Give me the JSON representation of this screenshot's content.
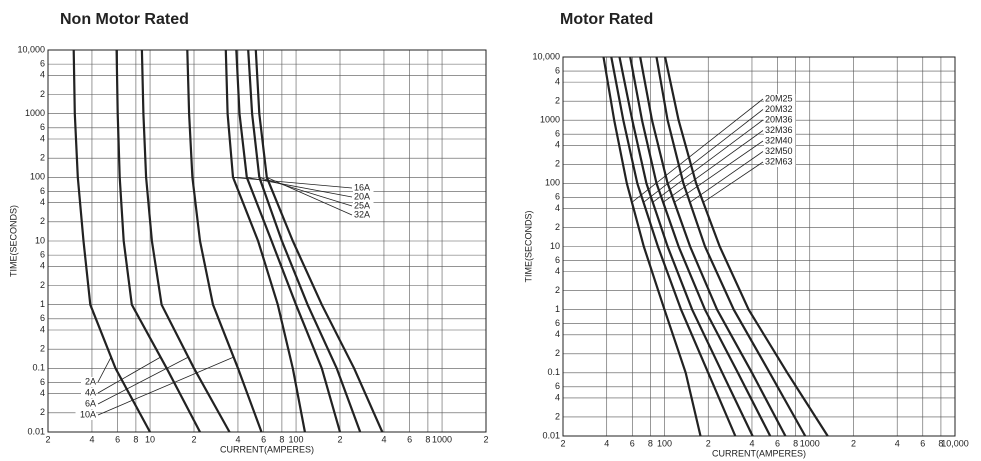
{
  "chart_data": [
    {
      "type": "line",
      "title": "Non Motor Rated",
      "xlabel": "CURRENT(AMPERES)",
      "ylabel": "TIME(SECONDS)",
      "xscale": "log",
      "yscale": "log",
      "grid": true,
      "xlim": [
        2,
        2000
      ],
      "ylim": [
        0.01,
        10000
      ],
      "xticks": [
        2,
        4,
        6,
        8,
        10,
        {
          "value": 20,
          "label": "2"
        },
        {
          "value": 40,
          "label": "4"
        },
        {
          "value": 60,
          "label": "6"
        },
        {
          "value": 80,
          "label": "8"
        },
        100,
        {
          "value": 200,
          "label": "2"
        },
        {
          "value": 400,
          "label": "4"
        },
        {
          "value": 600,
          "label": "6"
        },
        {
          "value": 800,
          "label": "8"
        },
        1000,
        {
          "value": 2000,
          "label": "2"
        }
      ],
      "yticks": [
        0.01,
        {
          "value": 0.02,
          "label": "2"
        },
        {
          "value": 0.04,
          "label": "4"
        },
        {
          "value": 0.06,
          "label": "6"
        },
        0.1,
        {
          "value": 0.2,
          "label": "2"
        },
        {
          "value": 0.4,
          "label": "4"
        },
        {
          "value": 0.6,
          "label": "6"
        },
        1,
        {
          "value": 2,
          "label": "2"
        },
        {
          "value": 4,
          "label": "4"
        },
        {
          "value": 6,
          "label": "6"
        },
        10,
        {
          "value": 20,
          "label": "2"
        },
        {
          "value": 40,
          "label": "4"
        },
        {
          "value": 60,
          "label": "6"
        },
        100,
        {
          "value": 200,
          "label": "2"
        },
        {
          "value": 400,
          "label": "4"
        },
        {
          "value": 600,
          "label": "6"
        },
        1000,
        {
          "value": 2000,
          "label": "2"
        },
        {
          "value": 4000,
          "label": "4"
        },
        {
          "value": 6000,
          "label": "6"
        },
        {
          "value": 10000,
          "label": "10,000"
        }
      ],
      "series": [
        {
          "name": "2A",
          "color": "#222222",
          "x": [
            3,
            3.05,
            3.2,
            3.5,
            3.9,
            5.8,
            10
          ],
          "values": [
            10000,
            1000,
            100,
            10,
            1,
            0.1,
            0.01
          ]
        },
        {
          "name": "4A",
          "color": "#222222",
          "x": [
            5.9,
            6,
            6.2,
            6.6,
            7.5,
            13,
            22
          ],
          "values": [
            10000,
            1000,
            100,
            10,
            1,
            0.1,
            0.01
          ]
        },
        {
          "name": "6A",
          "color": "#222222",
          "x": [
            8.8,
            9,
            9.4,
            10.3,
            12,
            20,
            35
          ],
          "values": [
            10000,
            1000,
            100,
            10,
            1,
            0.1,
            0.01
          ]
        },
        {
          "name": "10A",
          "color": "#222222",
          "x": [
            18,
            18.5,
            19.5,
            22,
            27,
            40,
            58
          ],
          "values": [
            10000,
            1000,
            100,
            10,
            1,
            0.1,
            0.01
          ]
        },
        {
          "name": "16A",
          "color": "#222222",
          "x": [
            33,
            34,
            37,
            55,
            75,
            95,
            115
          ],
          "values": [
            10000,
            1000,
            100,
            10,
            1,
            0.1,
            0.01
          ]
        },
        {
          "name": "20A",
          "color": "#222222",
          "x": [
            39,
            41,
            46,
            68,
            100,
            150,
            200
          ],
          "values": [
            10000,
            1000,
            100,
            10,
            1,
            0.1,
            0.01
          ]
        },
        {
          "name": "25A",
          "color": "#222222",
          "x": [
            47,
            50,
            56,
            80,
            120,
            190,
            275
          ],
          "values": [
            10000,
            1000,
            100,
            10,
            1,
            0.1,
            0.01
          ]
        },
        {
          "name": "32A",
          "color": "#222222",
          "x": [
            53,
            56,
            63,
            95,
            150,
            250,
            390
          ],
          "values": [
            10000,
            1000,
            100,
            10,
            1,
            0.1,
            0.01
          ]
        }
      ]
    },
    {
      "type": "line",
      "title": "Motor Rated",
      "xlabel": "CURRENT(AMPERES)",
      "ylabel": "TIME(SECONDS)",
      "xscale": "log",
      "yscale": "log",
      "grid": true,
      "xlim": [
        20,
        10000
      ],
      "ylim": [
        0.01,
        10000
      ],
      "xticks": [
        {
          "value": 20,
          "label": "2"
        },
        {
          "value": 40,
          "label": "4"
        },
        {
          "value": 60,
          "label": "6"
        },
        {
          "value": 80,
          "label": "8"
        },
        100,
        {
          "value": 200,
          "label": "2"
        },
        {
          "value": 400,
          "label": "4"
        },
        {
          "value": 600,
          "label": "6"
        },
        {
          "value": 800,
          "label": "8"
        },
        1000,
        {
          "value": 2000,
          "label": "2"
        },
        {
          "value": 4000,
          "label": "4"
        },
        {
          "value": 6000,
          "label": "6"
        },
        {
          "value": 8000,
          "label": "8"
        },
        {
          "value": 10000,
          "label": "10,000"
        }
      ],
      "yticks": [
        0.01,
        {
          "value": 0.02,
          "label": "2"
        },
        {
          "value": 0.04,
          "label": "4"
        },
        {
          "value": 0.06,
          "label": "6"
        },
        0.1,
        {
          "value": 0.2,
          "label": "2"
        },
        {
          "value": 0.4,
          "label": "4"
        },
        {
          "value": 0.6,
          "label": "6"
        },
        1,
        {
          "value": 2,
          "label": "2"
        },
        {
          "value": 4,
          "label": "4"
        },
        {
          "value": 6,
          "label": "6"
        },
        10,
        {
          "value": 20,
          "label": "2"
        },
        {
          "value": 40,
          "label": "4"
        },
        {
          "value": 60,
          "label": "6"
        },
        100,
        {
          "value": 200,
          "label": "2"
        },
        {
          "value": 400,
          "label": "4"
        },
        {
          "value": 600,
          "label": "6"
        },
        1000,
        {
          "value": 2000,
          "label": "2"
        },
        {
          "value": 4000,
          "label": "4"
        },
        {
          "value": 6000,
          "label": "6"
        },
        {
          "value": 10000,
          "label": "10,000"
        }
      ],
      "series": [
        {
          "name": "20M25",
          "color": "#222222",
          "x": [
            38,
            45,
            55,
            72,
            100,
            140,
            177
          ],
          "values": [
            10000,
            1000,
            100,
            10,
            1,
            0.1,
            0.01
          ]
        },
        {
          "name": "20M32",
          "color": "#222222",
          "x": [
            43,
            52,
            65,
            90,
            130,
            200,
            307
          ],
          "values": [
            10000,
            1000,
            100,
            10,
            1,
            0.1,
            0.01
          ]
        },
        {
          "name": "20M36",
          "color": "#222222",
          "x": [
            49,
            60,
            75,
            105,
            155,
            250,
            404
          ],
          "values": [
            10000,
            1000,
            100,
            10,
            1,
            0.1,
            0.01
          ]
        },
        {
          "name": "32M36",
          "color": "#222222",
          "x": [
            58,
            70,
            88,
            125,
            190,
            320,
            534
          ],
          "values": [
            10000,
            1000,
            100,
            10,
            1,
            0.1,
            0.01
          ]
        },
        {
          "name": "32M40",
          "color": "#222222",
          "x": [
            68,
            82,
            105,
            150,
            230,
            400,
            680
          ],
          "values": [
            10000,
            1000,
            100,
            10,
            1,
            0.1,
            0.01
          ]
        },
        {
          "name": "32M50",
          "color": "#222222",
          "x": [
            88,
            105,
            135,
            190,
            300,
            530,
            930
          ],
          "values": [
            10000,
            1000,
            100,
            10,
            1,
            0.1,
            0.01
          ]
        },
        {
          "name": "32M63",
          "color": "#222222",
          "x": [
            101,
            125,
            165,
            240,
            380,
            700,
            1330
          ],
          "values": [
            10000,
            1000,
            100,
            10,
            1,
            0.1,
            0.01
          ]
        }
      ]
    }
  ]
}
